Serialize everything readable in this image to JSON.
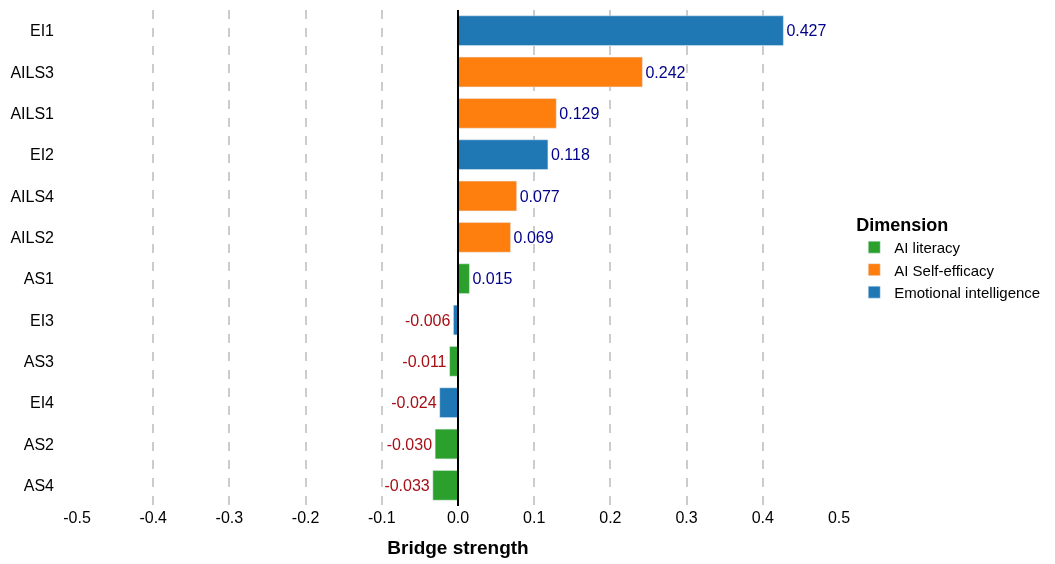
{
  "chart_data": {
    "type": "bar",
    "orientation": "horizontal",
    "xlabel": "Bridge strength",
    "legend_title": "Dimension",
    "legend": "right",
    "categories": [
      "EI1",
      "AILS3",
      "AILS1",
      "EI2",
      "AILS4",
      "AILS2",
      "AS1",
      "EI3",
      "AS3",
      "EI4",
      "AS2",
      "AS4"
    ],
    "series": [
      {
        "name": "AI literacy",
        "color": "#2ca02c",
        "values": [
          null,
          null,
          null,
          null,
          null,
          null,
          0.015,
          null,
          -0.011,
          null,
          -0.03,
          -0.033
        ],
        "value_labels": [
          null,
          null,
          null,
          null,
          null,
          null,
          "0.015",
          null,
          "-0.011",
          null,
          "-0.030",
          "-0.033"
        ]
      },
      {
        "name": "AI Self-efficacy",
        "color": "#ff7f0e",
        "values": [
          null,
          0.242,
          0.129,
          null,
          0.077,
          0.069,
          null,
          null,
          null,
          null,
          null,
          null
        ],
        "value_labels": [
          null,
          "0.242",
          "0.129",
          null,
          "0.077",
          "0.069",
          null,
          null,
          null,
          null,
          null,
          null
        ]
      },
      {
        "name": "Emotional intelligence",
        "color": "#1f77b4",
        "values": [
          0.427,
          null,
          null,
          0.118,
          null,
          null,
          null,
          -0.006,
          null,
          -0.024,
          null,
          null
        ],
        "value_labels": [
          "0.427",
          null,
          null,
          "0.118",
          null,
          null,
          null,
          "-0.006",
          null,
          "-0.024",
          null,
          null
        ]
      }
    ],
    "xlim": [
      -0.5,
      0.5
    ],
    "xticks": [
      {
        "value": -0.5,
        "label": "-0.5"
      },
      {
        "value": -0.4,
        "label": "-0.4"
      },
      {
        "value": -0.3,
        "label": "-0.3"
      },
      {
        "value": -0.2,
        "label": "-0.2"
      },
      {
        "value": -0.1,
        "label": "-0.1"
      },
      {
        "value": 0,
        "label": "0.0"
      },
      {
        "value": 0.1,
        "label": "0.1"
      },
      {
        "value": 0.2,
        "label": "0.2"
      },
      {
        "value": 0.3,
        "label": "0.3"
      },
      {
        "value": 0.4,
        "label": "0.4"
      },
      {
        "value": 0.5,
        "label": "0.5"
      }
    ],
    "grid": "x",
    "ref_lines": [
      {
        "axis": "x",
        "value": 0,
        "color": "#000000"
      }
    ]
  }
}
